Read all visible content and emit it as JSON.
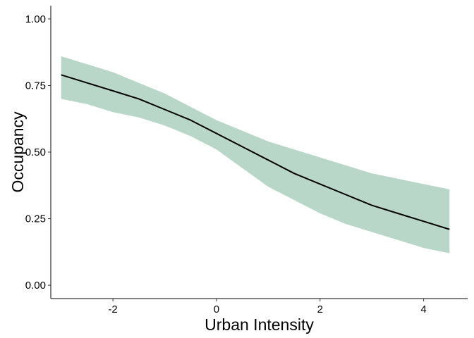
{
  "chart_data": {
    "type": "line",
    "title": "",
    "xlabel": "Urban Intensity",
    "ylabel": "Occupancy",
    "xlim": [
      -3.2,
      4.85
    ],
    "ylim": [
      -0.05,
      1.05
    ],
    "grid": false,
    "legend": "none",
    "x_ticks": [
      {
        "value": -2,
        "label": "-2"
      },
      {
        "value": 0,
        "label": "0"
      },
      {
        "value": 2,
        "label": "2"
      },
      {
        "value": 4,
        "label": "4"
      }
    ],
    "y_ticks": [
      {
        "value": 0.0,
        "label": "0.00"
      },
      {
        "value": 0.25,
        "label": "0.25"
      },
      {
        "value": 0.5,
        "label": "0.50"
      },
      {
        "value": 0.75,
        "label": "0.75"
      },
      {
        "value": 1.0,
        "label": "1.00"
      }
    ],
    "series": [
      {
        "x": [
          -3.0,
          -2.5,
          -2.0,
          -1.5,
          -1.0,
          -0.5,
          0.0,
          0.5,
          1.0,
          1.5,
          2.0,
          2.5,
          3.0,
          3.5,
          4.0,
          4.5
        ],
        "y": [
          0.79,
          0.76,
          0.73,
          0.7,
          0.66,
          0.62,
          0.57,
          0.52,
          0.47,
          0.42,
          0.38,
          0.34,
          0.3,
          0.27,
          0.24,
          0.21
        ],
        "lower": [
          0.7,
          0.68,
          0.65,
          0.63,
          0.6,
          0.56,
          0.51,
          0.44,
          0.37,
          0.32,
          0.27,
          0.23,
          0.2,
          0.17,
          0.14,
          0.12
        ],
        "upper": [
          0.86,
          0.83,
          0.8,
          0.76,
          0.72,
          0.67,
          0.62,
          0.58,
          0.54,
          0.51,
          0.48,
          0.45,
          0.42,
          0.4,
          0.38,
          0.36
        ],
        "line_color": "#000000",
        "band_color": "#b8d7c8"
      }
    ]
  }
}
